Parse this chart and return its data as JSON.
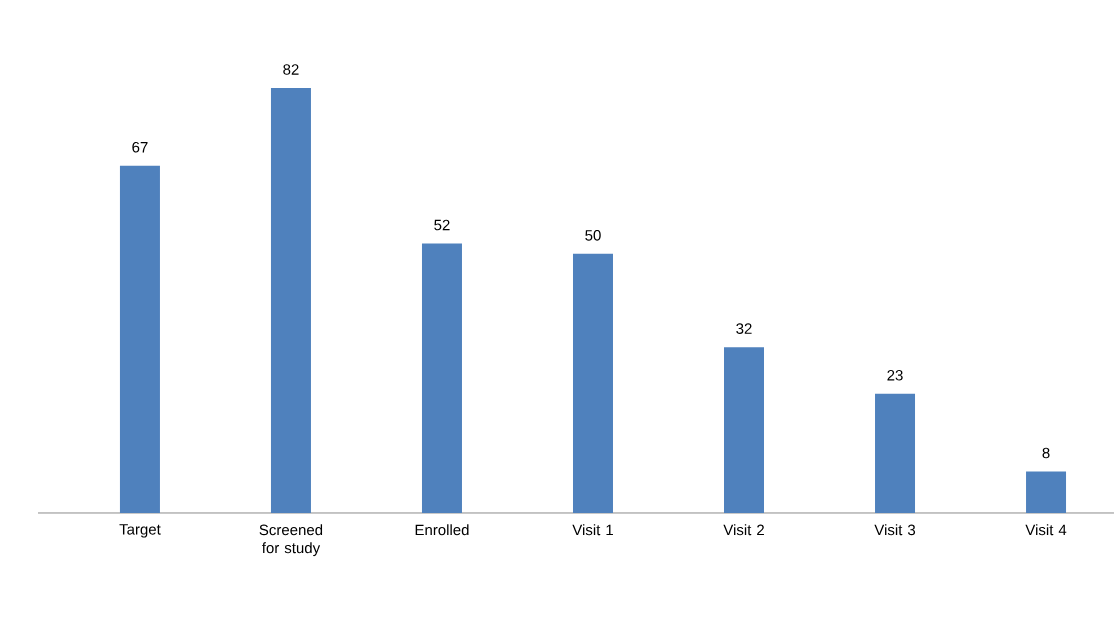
{
  "chart_data": {
    "type": "bar",
    "categories": [
      "Target",
      "Screened for study",
      "Enrolled",
      "Visit 1",
      "Visit 2",
      "Visit 3",
      "Visit 4"
    ],
    "values": [
      67,
      82,
      52,
      50,
      32,
      23,
      8
    ],
    "color": "#4f81bd",
    "data_labels": true
  }
}
